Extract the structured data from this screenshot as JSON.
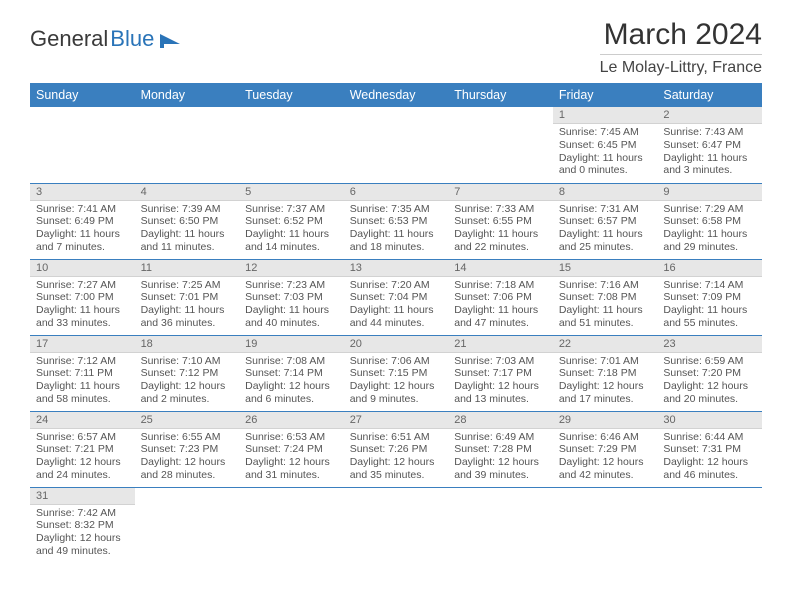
{
  "logo": {
    "part1": "General",
    "part2": "Blue"
  },
  "header": {
    "title": "March 2024",
    "location": "Le Molay-Littry, France"
  },
  "dayHeaders": [
    "Sunday",
    "Monday",
    "Tuesday",
    "Wednesday",
    "Thursday",
    "Friday",
    "Saturday"
  ],
  "colors": {
    "header_bg": "#3a7fbf",
    "header_text": "#ffffff",
    "daynum_bg": "#e7e7e7",
    "row_border": "#3a7fbf",
    "text_body": "#555555",
    "logo_blue": "#2a74b8"
  },
  "weeks": [
    [
      null,
      null,
      null,
      null,
      null,
      {
        "n": "1",
        "sr": "Sunrise: 7:45 AM",
        "ss": "Sunset: 6:45 PM",
        "dl1": "Daylight: 11 hours",
        "dl2": "and 0 minutes."
      },
      {
        "n": "2",
        "sr": "Sunrise: 7:43 AM",
        "ss": "Sunset: 6:47 PM",
        "dl1": "Daylight: 11 hours",
        "dl2": "and 3 minutes."
      }
    ],
    [
      {
        "n": "3",
        "sr": "Sunrise: 7:41 AM",
        "ss": "Sunset: 6:49 PM",
        "dl1": "Daylight: 11 hours",
        "dl2": "and 7 minutes."
      },
      {
        "n": "4",
        "sr": "Sunrise: 7:39 AM",
        "ss": "Sunset: 6:50 PM",
        "dl1": "Daylight: 11 hours",
        "dl2": "and 11 minutes."
      },
      {
        "n": "5",
        "sr": "Sunrise: 7:37 AM",
        "ss": "Sunset: 6:52 PM",
        "dl1": "Daylight: 11 hours",
        "dl2": "and 14 minutes."
      },
      {
        "n": "6",
        "sr": "Sunrise: 7:35 AM",
        "ss": "Sunset: 6:53 PM",
        "dl1": "Daylight: 11 hours",
        "dl2": "and 18 minutes."
      },
      {
        "n": "7",
        "sr": "Sunrise: 7:33 AM",
        "ss": "Sunset: 6:55 PM",
        "dl1": "Daylight: 11 hours",
        "dl2": "and 22 minutes."
      },
      {
        "n": "8",
        "sr": "Sunrise: 7:31 AM",
        "ss": "Sunset: 6:57 PM",
        "dl1": "Daylight: 11 hours",
        "dl2": "and 25 minutes."
      },
      {
        "n": "9",
        "sr": "Sunrise: 7:29 AM",
        "ss": "Sunset: 6:58 PM",
        "dl1": "Daylight: 11 hours",
        "dl2": "and 29 minutes."
      }
    ],
    [
      {
        "n": "10",
        "sr": "Sunrise: 7:27 AM",
        "ss": "Sunset: 7:00 PM",
        "dl1": "Daylight: 11 hours",
        "dl2": "and 33 minutes."
      },
      {
        "n": "11",
        "sr": "Sunrise: 7:25 AM",
        "ss": "Sunset: 7:01 PM",
        "dl1": "Daylight: 11 hours",
        "dl2": "and 36 minutes."
      },
      {
        "n": "12",
        "sr": "Sunrise: 7:23 AM",
        "ss": "Sunset: 7:03 PM",
        "dl1": "Daylight: 11 hours",
        "dl2": "and 40 minutes."
      },
      {
        "n": "13",
        "sr": "Sunrise: 7:20 AM",
        "ss": "Sunset: 7:04 PM",
        "dl1": "Daylight: 11 hours",
        "dl2": "and 44 minutes."
      },
      {
        "n": "14",
        "sr": "Sunrise: 7:18 AM",
        "ss": "Sunset: 7:06 PM",
        "dl1": "Daylight: 11 hours",
        "dl2": "and 47 minutes."
      },
      {
        "n": "15",
        "sr": "Sunrise: 7:16 AM",
        "ss": "Sunset: 7:08 PM",
        "dl1": "Daylight: 11 hours",
        "dl2": "and 51 minutes."
      },
      {
        "n": "16",
        "sr": "Sunrise: 7:14 AM",
        "ss": "Sunset: 7:09 PM",
        "dl1": "Daylight: 11 hours",
        "dl2": "and 55 minutes."
      }
    ],
    [
      {
        "n": "17",
        "sr": "Sunrise: 7:12 AM",
        "ss": "Sunset: 7:11 PM",
        "dl1": "Daylight: 11 hours",
        "dl2": "and 58 minutes."
      },
      {
        "n": "18",
        "sr": "Sunrise: 7:10 AM",
        "ss": "Sunset: 7:12 PM",
        "dl1": "Daylight: 12 hours",
        "dl2": "and 2 minutes."
      },
      {
        "n": "19",
        "sr": "Sunrise: 7:08 AM",
        "ss": "Sunset: 7:14 PM",
        "dl1": "Daylight: 12 hours",
        "dl2": "and 6 minutes."
      },
      {
        "n": "20",
        "sr": "Sunrise: 7:06 AM",
        "ss": "Sunset: 7:15 PM",
        "dl1": "Daylight: 12 hours",
        "dl2": "and 9 minutes."
      },
      {
        "n": "21",
        "sr": "Sunrise: 7:03 AM",
        "ss": "Sunset: 7:17 PM",
        "dl1": "Daylight: 12 hours",
        "dl2": "and 13 minutes."
      },
      {
        "n": "22",
        "sr": "Sunrise: 7:01 AM",
        "ss": "Sunset: 7:18 PM",
        "dl1": "Daylight: 12 hours",
        "dl2": "and 17 minutes."
      },
      {
        "n": "23",
        "sr": "Sunrise: 6:59 AM",
        "ss": "Sunset: 7:20 PM",
        "dl1": "Daylight: 12 hours",
        "dl2": "and 20 minutes."
      }
    ],
    [
      {
        "n": "24",
        "sr": "Sunrise: 6:57 AM",
        "ss": "Sunset: 7:21 PM",
        "dl1": "Daylight: 12 hours",
        "dl2": "and 24 minutes."
      },
      {
        "n": "25",
        "sr": "Sunrise: 6:55 AM",
        "ss": "Sunset: 7:23 PM",
        "dl1": "Daylight: 12 hours",
        "dl2": "and 28 minutes."
      },
      {
        "n": "26",
        "sr": "Sunrise: 6:53 AM",
        "ss": "Sunset: 7:24 PM",
        "dl1": "Daylight: 12 hours",
        "dl2": "and 31 minutes."
      },
      {
        "n": "27",
        "sr": "Sunrise: 6:51 AM",
        "ss": "Sunset: 7:26 PM",
        "dl1": "Daylight: 12 hours",
        "dl2": "and 35 minutes."
      },
      {
        "n": "28",
        "sr": "Sunrise: 6:49 AM",
        "ss": "Sunset: 7:28 PM",
        "dl1": "Daylight: 12 hours",
        "dl2": "and 39 minutes."
      },
      {
        "n": "29",
        "sr": "Sunrise: 6:46 AM",
        "ss": "Sunset: 7:29 PM",
        "dl1": "Daylight: 12 hours",
        "dl2": "and 42 minutes."
      },
      {
        "n": "30",
        "sr": "Sunrise: 6:44 AM",
        "ss": "Sunset: 7:31 PM",
        "dl1": "Daylight: 12 hours",
        "dl2": "and 46 minutes."
      }
    ],
    [
      {
        "n": "31",
        "sr": "Sunrise: 7:42 AM",
        "ss": "Sunset: 8:32 PM",
        "dl1": "Daylight: 12 hours",
        "dl2": "and 49 minutes."
      },
      null,
      null,
      null,
      null,
      null,
      null
    ]
  ]
}
